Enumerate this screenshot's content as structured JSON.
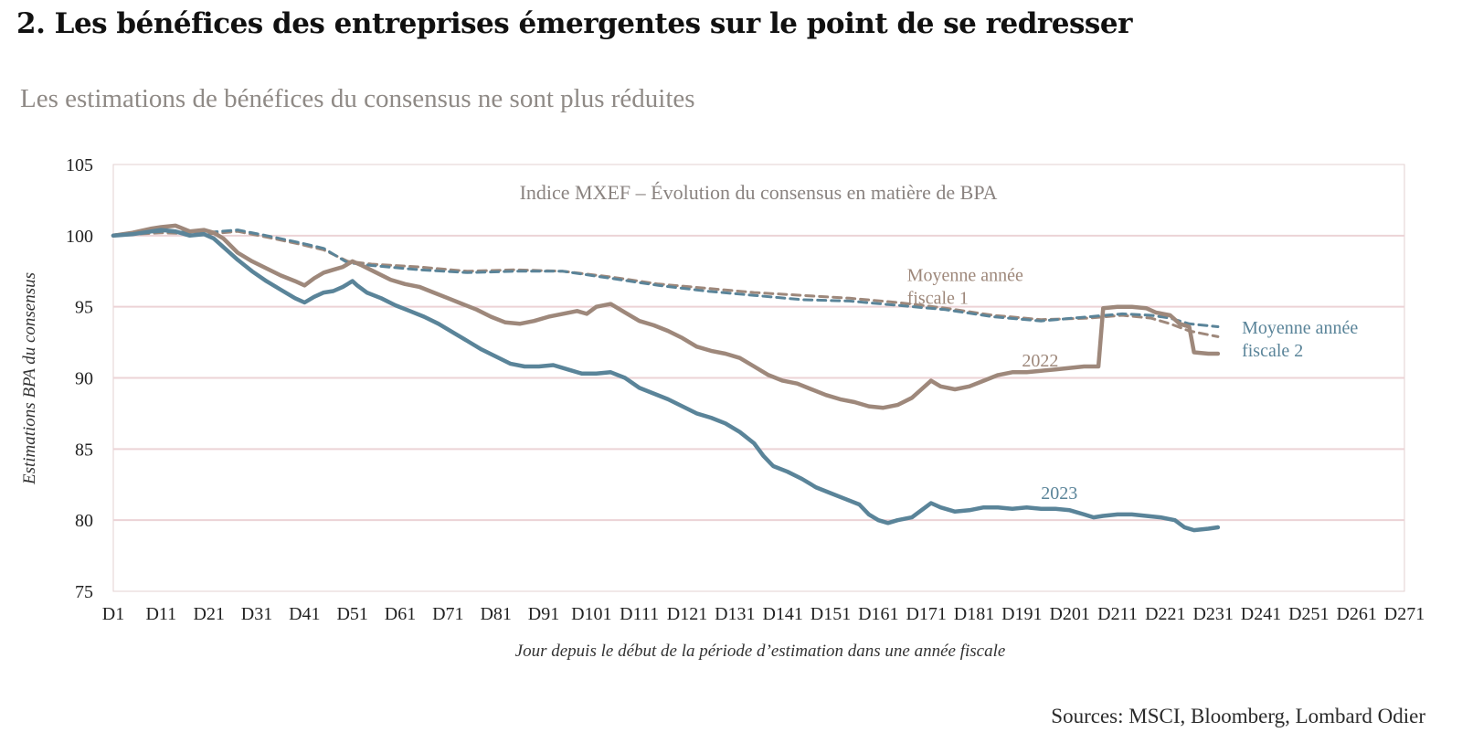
{
  "header": {
    "title": "2. Les bénéfices des entreprises émergentes sur le point de se redresser",
    "subtitle": "Les estimations de bénéfices du consensus ne sont plus réduites"
  },
  "footer": {
    "source": "Sources: MSCI, Bloomberg, Lombard Odier"
  },
  "colors": {
    "series_2022": "#9e887b",
    "series_2023": "#5a8499",
    "gridline": "#ecd3d6",
    "frame": "#e3d2d2",
    "axis_text": "#222222"
  },
  "chart_data": {
    "type": "line",
    "title": "Indice MXEF – Évolution du consensus en matière de BPA",
    "xlabel": "Jour depuis le début de la période d’estimation dans une année fiscale",
    "ylabel": "Estimations BPA du consensus",
    "xlim": [
      1,
      271
    ],
    "ylim": [
      75,
      105
    ],
    "grid": true,
    "x_ticks": [
      "D1",
      "D11",
      "D21",
      "D31",
      "D41",
      "D51",
      "D61",
      "D71",
      "D81",
      "D91",
      "D101",
      "D111",
      "D121",
      "D131",
      "D141",
      "D151",
      "D161",
      "D171",
      "D181",
      "D191",
      "D201",
      "D211",
      "D221",
      "D231",
      "D241",
      "D251",
      "D261",
      "D271"
    ],
    "y_ticks": [
      "75",
      "80",
      "85",
      "90",
      "95",
      "100",
      "105"
    ],
    "series": [
      {
        "name": "2022",
        "style": "solid",
        "color": "#9e887b",
        "points": [
          [
            1,
            100.0
          ],
          [
            5,
            100.2
          ],
          [
            9,
            100.5
          ],
          [
            11,
            100.6
          ],
          [
            14,
            100.7
          ],
          [
            17,
            100.3
          ],
          [
            20,
            100.4
          ],
          [
            22,
            100.2
          ],
          [
            24,
            99.8
          ],
          [
            27,
            98.8
          ],
          [
            30,
            98.2
          ],
          [
            33,
            97.7
          ],
          [
            36,
            97.2
          ],
          [
            39,
            96.8
          ],
          [
            41,
            96.5
          ],
          [
            43,
            97.0
          ],
          [
            45,
            97.4
          ],
          [
            47,
            97.6
          ],
          [
            49,
            97.8
          ],
          [
            51,
            98.2
          ],
          [
            53,
            97.9
          ],
          [
            56,
            97.4
          ],
          [
            59,
            96.9
          ],
          [
            62,
            96.6
          ],
          [
            65,
            96.4
          ],
          [
            68,
            96.0
          ],
          [
            71,
            95.6
          ],
          [
            74,
            95.2
          ],
          [
            77,
            94.8
          ],
          [
            80,
            94.3
          ],
          [
            83,
            93.9
          ],
          [
            86,
            93.8
          ],
          [
            89,
            94.0
          ],
          [
            92,
            94.3
          ],
          [
            95,
            94.5
          ],
          [
            98,
            94.7
          ],
          [
            100,
            94.5
          ],
          [
            102,
            95.0
          ],
          [
            105,
            95.2
          ],
          [
            108,
            94.6
          ],
          [
            111,
            94.0
          ],
          [
            114,
            93.7
          ],
          [
            117,
            93.3
          ],
          [
            120,
            92.8
          ],
          [
            123,
            92.2
          ],
          [
            126,
            91.9
          ],
          [
            129,
            91.7
          ],
          [
            132,
            91.4
          ],
          [
            135,
            90.8
          ],
          [
            138,
            90.2
          ],
          [
            141,
            89.8
          ],
          [
            144,
            89.6
          ],
          [
            147,
            89.2
          ],
          [
            150,
            88.8
          ],
          [
            153,
            88.5
          ],
          [
            156,
            88.3
          ],
          [
            159,
            88.0
          ],
          [
            162,
            87.9
          ],
          [
            165,
            88.1
          ],
          [
            168,
            88.6
          ],
          [
            170,
            89.2
          ],
          [
            172,
            89.8
          ],
          [
            174,
            89.4
          ],
          [
            177,
            89.2
          ],
          [
            180,
            89.4
          ],
          [
            183,
            89.8
          ],
          [
            186,
            90.2
          ],
          [
            189,
            90.4
          ],
          [
            192,
            90.4
          ],
          [
            195,
            90.5
          ],
          [
            198,
            90.6
          ],
          [
            201,
            90.7
          ],
          [
            204,
            90.8
          ],
          [
            207,
            90.8
          ],
          [
            208,
            94.9
          ],
          [
            211,
            95.0
          ],
          [
            214,
            95.0
          ],
          [
            217,
            94.9
          ],
          [
            219,
            94.6
          ],
          [
            222,
            94.4
          ],
          [
            224,
            93.8
          ],
          [
            226,
            93.6
          ],
          [
            227,
            91.8
          ],
          [
            230,
            91.7
          ],
          [
            232,
            91.7
          ]
        ]
      },
      {
        "name": "2023",
        "style": "solid",
        "color": "#5a8499",
        "points": [
          [
            1,
            100.0
          ],
          [
            5,
            100.1
          ],
          [
            9,
            100.3
          ],
          [
            11,
            100.4
          ],
          [
            14,
            100.3
          ],
          [
            17,
            100.0
          ],
          [
            20,
            100.1
          ],
          [
            22,
            99.8
          ],
          [
            24,
            99.2
          ],
          [
            27,
            98.3
          ],
          [
            30,
            97.5
          ],
          [
            33,
            96.8
          ],
          [
            36,
            96.2
          ],
          [
            39,
            95.6
          ],
          [
            41,
            95.3
          ],
          [
            43,
            95.7
          ],
          [
            45,
            96.0
          ],
          [
            47,
            96.1
          ],
          [
            49,
            96.4
          ],
          [
            51,
            96.8
          ],
          [
            52,
            96.5
          ],
          [
            54,
            96.0
          ],
          [
            57,
            95.6
          ],
          [
            60,
            95.1
          ],
          [
            63,
            94.7
          ],
          [
            66,
            94.3
          ],
          [
            69,
            93.8
          ],
          [
            72,
            93.2
          ],
          [
            75,
            92.6
          ],
          [
            78,
            92.0
          ],
          [
            81,
            91.5
          ],
          [
            84,
            91.0
          ],
          [
            87,
            90.8
          ],
          [
            90,
            90.8
          ],
          [
            93,
            90.9
          ],
          [
            96,
            90.6
          ],
          [
            99,
            90.3
          ],
          [
            102,
            90.3
          ],
          [
            105,
            90.4
          ],
          [
            108,
            90.0
          ],
          [
            111,
            89.3
          ],
          [
            114,
            88.9
          ],
          [
            117,
            88.5
          ],
          [
            120,
            88.0
          ],
          [
            123,
            87.5
          ],
          [
            126,
            87.2
          ],
          [
            129,
            86.8
          ],
          [
            132,
            86.2
          ],
          [
            135,
            85.4
          ],
          [
            137,
            84.5
          ],
          [
            139,
            83.8
          ],
          [
            142,
            83.4
          ],
          [
            145,
            82.9
          ],
          [
            148,
            82.3
          ],
          [
            151,
            81.9
          ],
          [
            154,
            81.5
          ],
          [
            157,
            81.1
          ],
          [
            159,
            80.4
          ],
          [
            161,
            80.0
          ],
          [
            163,
            79.8
          ],
          [
            165,
            80.0
          ],
          [
            168,
            80.2
          ],
          [
            170,
            80.7
          ],
          [
            172,
            81.2
          ],
          [
            174,
            80.9
          ],
          [
            177,
            80.6
          ],
          [
            180,
            80.7
          ],
          [
            183,
            80.9
          ],
          [
            186,
            80.9
          ],
          [
            189,
            80.8
          ],
          [
            192,
            80.9
          ],
          [
            195,
            80.8
          ],
          [
            198,
            80.8
          ],
          [
            201,
            80.7
          ],
          [
            204,
            80.4
          ],
          [
            206,
            80.2
          ],
          [
            208,
            80.3
          ],
          [
            211,
            80.4
          ],
          [
            214,
            80.4
          ],
          [
            217,
            80.3
          ],
          [
            220,
            80.2
          ],
          [
            223,
            80.0
          ],
          [
            225,
            79.5
          ],
          [
            227,
            79.3
          ],
          [
            230,
            79.4
          ],
          [
            232,
            79.5
          ]
        ]
      },
      {
        "name": "Moyenne année fiscale 1",
        "style": "dashed",
        "color": "#9e887b",
        "points": [
          [
            1,
            100.0
          ],
          [
            11,
            100.2
          ],
          [
            20,
            100.1
          ],
          [
            27,
            100.3
          ],
          [
            33,
            99.9
          ],
          [
            40,
            99.4
          ],
          [
            45,
            99.0
          ],
          [
            50,
            98.2
          ],
          [
            55,
            98.0
          ],
          [
            65,
            97.8
          ],
          [
            75,
            97.5
          ],
          [
            85,
            97.6
          ],
          [
            95,
            97.5
          ],
          [
            105,
            97.1
          ],
          [
            115,
            96.6
          ],
          [
            125,
            96.3
          ],
          [
            135,
            96.0
          ],
          [
            145,
            95.8
          ],
          [
            155,
            95.6
          ],
          [
            165,
            95.3
          ],
          [
            175,
            94.9
          ],
          [
            185,
            94.4
          ],
          [
            195,
            94.1
          ],
          [
            205,
            94.2
          ],
          [
            212,
            94.4
          ],
          [
            218,
            94.2
          ],
          [
            222,
            93.8
          ],
          [
            226,
            93.3
          ],
          [
            232,
            92.9
          ]
        ]
      },
      {
        "name": "Moyenne année fiscale 2",
        "style": "dashed",
        "color": "#5a8499",
        "points": [
          [
            1,
            100.0
          ],
          [
            11,
            100.3
          ],
          [
            20,
            100.2
          ],
          [
            27,
            100.4
          ],
          [
            33,
            100.0
          ],
          [
            40,
            99.5
          ],
          [
            45,
            99.1
          ],
          [
            50,
            98.1
          ],
          [
            55,
            97.9
          ],
          [
            65,
            97.6
          ],
          [
            75,
            97.4
          ],
          [
            85,
            97.5
          ],
          [
            95,
            97.5
          ],
          [
            105,
            97.0
          ],
          [
            115,
            96.5
          ],
          [
            125,
            96.1
          ],
          [
            135,
            95.8
          ],
          [
            145,
            95.5
          ],
          [
            155,
            95.4
          ],
          [
            165,
            95.1
          ],
          [
            175,
            94.8
          ],
          [
            185,
            94.3
          ],
          [
            195,
            94.0
          ],
          [
            205,
            94.3
          ],
          [
            212,
            94.5
          ],
          [
            218,
            94.4
          ],
          [
            222,
            94.2
          ],
          [
            226,
            93.8
          ],
          [
            232,
            93.6
          ]
        ]
      }
    ],
    "annotations": [
      {
        "text": "Moyenne année",
        "x": 167,
        "y": 96.8,
        "color": "#9e887b"
      },
      {
        "text": "fiscale 1",
        "x": 167,
        "y": 95.2,
        "color": "#9e887b"
      },
      {
        "text": "Moyenne année",
        "x": 237,
        "y": 93.1,
        "color": "#5a8499"
      },
      {
        "text": "fiscale 2",
        "x": 237,
        "y": 91.5,
        "color": "#5a8499"
      },
      {
        "text": "2022",
        "x": 191,
        "y": 90.8,
        "color": "#9e887b"
      },
      {
        "text": "2023",
        "x": 195,
        "y": 81.5,
        "color": "#5a8499"
      }
    ]
  }
}
